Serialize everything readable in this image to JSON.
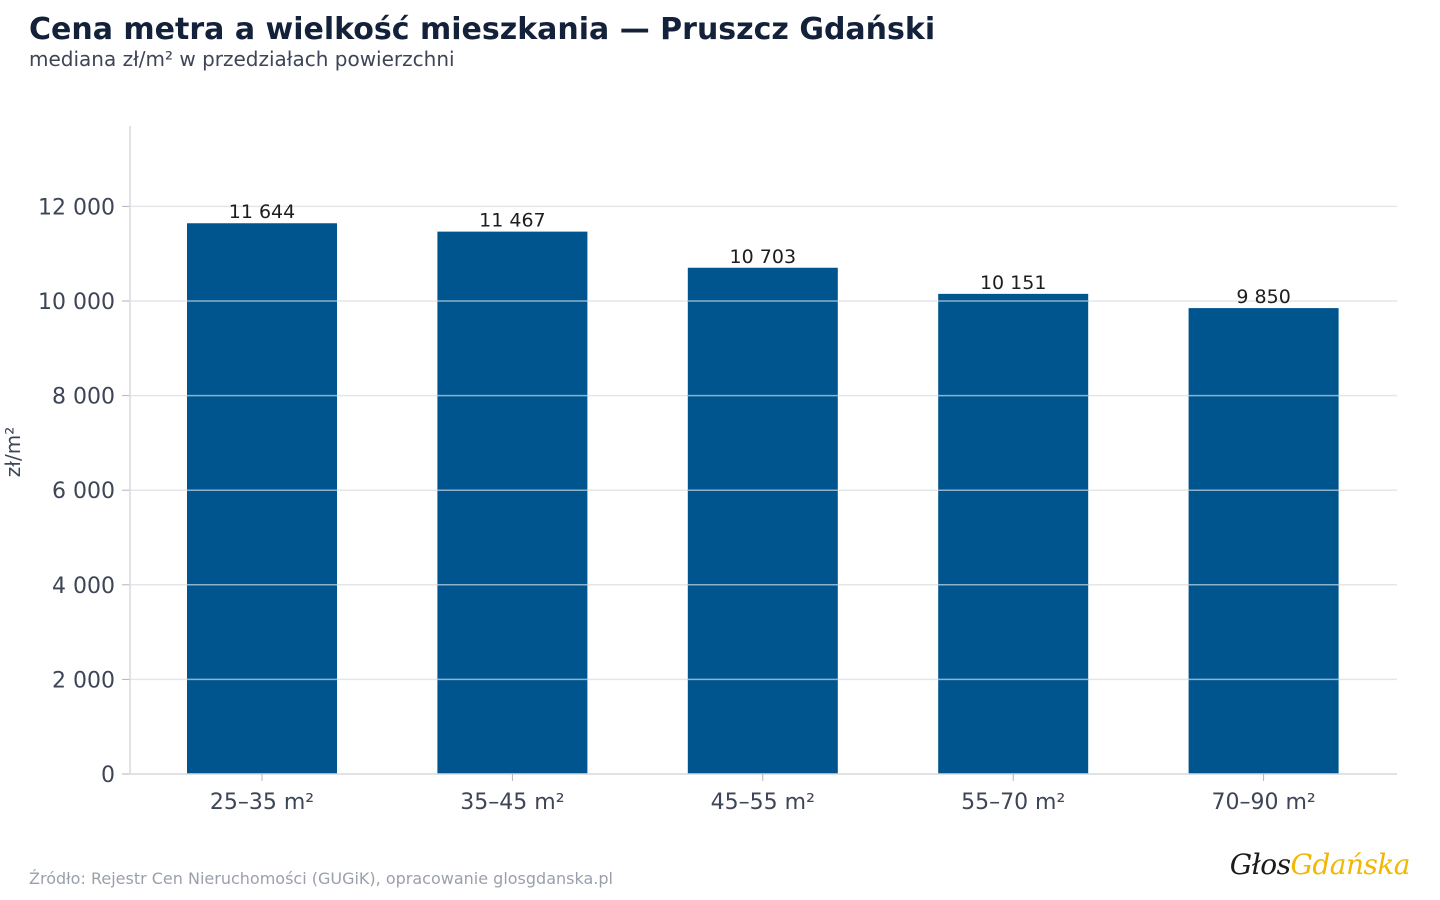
{
  "chart_data": {
    "type": "bar",
    "title": "Cena metra a wielkość mieszkania — Pruszcz Gdański",
    "subtitle": "mediana zł/m² w przedziałach powierzchni",
    "ylabel": "zł/m²",
    "xlabel": "",
    "categories": [
      "25–35 m²",
      "35–45 m²",
      "45–55 m²",
      "55–70 m²",
      "70–90 m²"
    ],
    "values": [
      11644,
      11467,
      10703,
      10151,
      9850
    ],
    "value_labels": [
      "11 644",
      "11 467",
      "10 703",
      "10 151",
      "9 850"
    ],
    "ylim": [
      0,
      13700
    ],
    "yticks": [
      0,
      2000,
      4000,
      6000,
      8000,
      10000,
      12000
    ],
    "ytick_labels": [
      "0",
      "2 000",
      "4 000",
      "6 000",
      "8 000",
      "10 000",
      "12 000"
    ],
    "grid": true,
    "bar_color": "#00558f",
    "source": "Źródło: Rejestr Cen Nieruchomości (GUGiK), opracowanie glosgdanska.pl"
  },
  "brand": {
    "part1": "Głos",
    "part2": "Gdańska",
    "color1": "#1b1b1b",
    "color2": "#f2b705"
  }
}
